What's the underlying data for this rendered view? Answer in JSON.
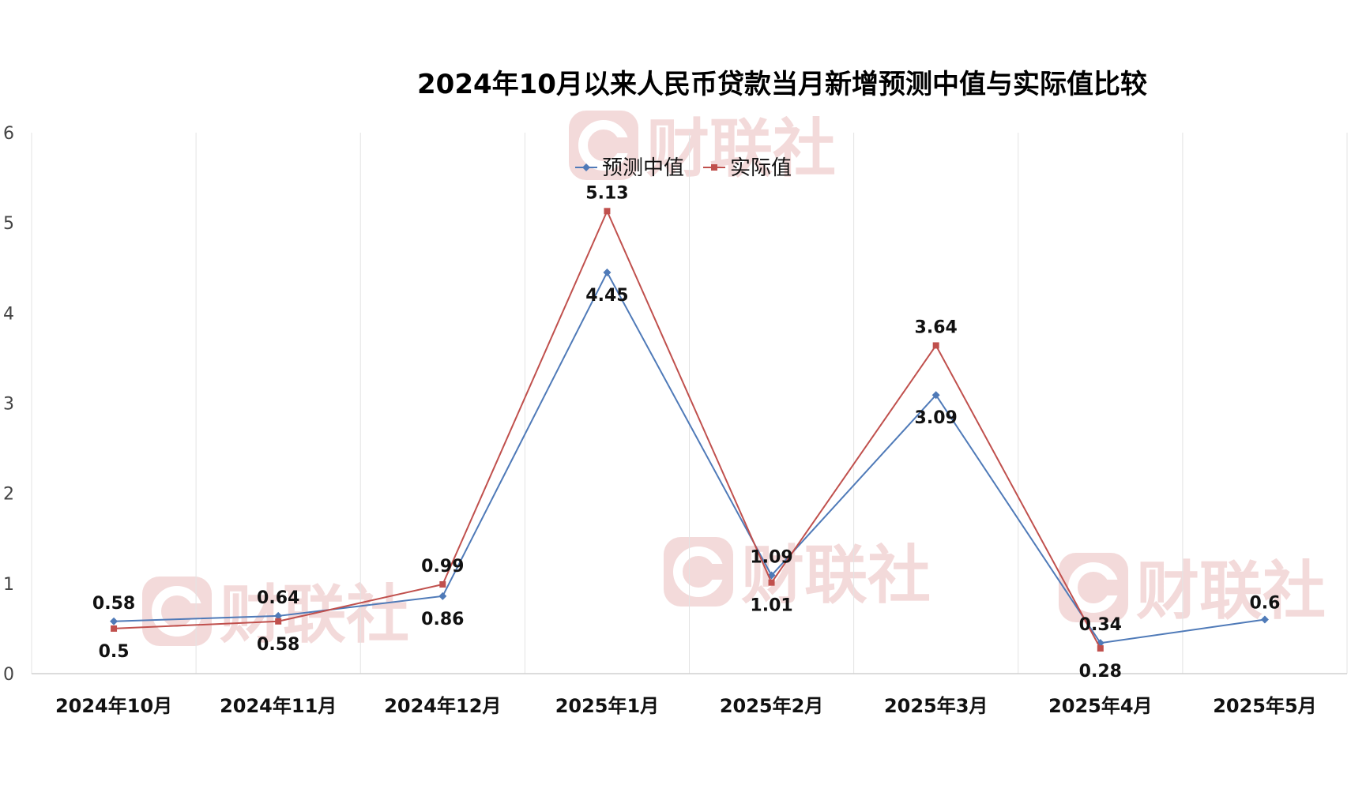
{
  "chart_data": {
    "type": "line",
    "title": "2024年10月以来人民币贷款当月新增预测中值与实际值比较",
    "categories": [
      "2024年10月",
      "2024年11月",
      "2024年12月",
      "2025年1月",
      "2025年2月",
      "2025年3月",
      "2025年4月",
      "2025年5月"
    ],
    "series": [
      {
        "name": "预测中值",
        "color": "#4f7ab8",
        "marker": "diamond",
        "values": [
          0.58,
          0.64,
          0.86,
          4.45,
          1.09,
          3.09,
          0.34,
          0.6
        ],
        "labels": [
          "0.58",
          "0.64",
          "0.86",
          "4.45",
          "1.09",
          "3.09",
          "0.34",
          "0.6"
        ]
      },
      {
        "name": "实际值",
        "color": "#c0504d",
        "marker": "square",
        "values": [
          0.5,
          0.58,
          0.99,
          5.13,
          1.01,
          3.64,
          0.28,
          null
        ],
        "labels": [
          "0.5",
          "0.58",
          "0.99",
          "5.13",
          "1.01",
          "3.64",
          "0.28",
          ""
        ]
      }
    ],
    "ylim": [
      0,
      6
    ],
    "yticks": [
      "0",
      "1",
      "2",
      "3",
      "4",
      "5",
      "6"
    ],
    "xlabel": "",
    "ylabel": "",
    "grid": "vertical",
    "legend": "top-center"
  },
  "watermark": {
    "text": "财联社",
    "color": "#f3dada"
  }
}
